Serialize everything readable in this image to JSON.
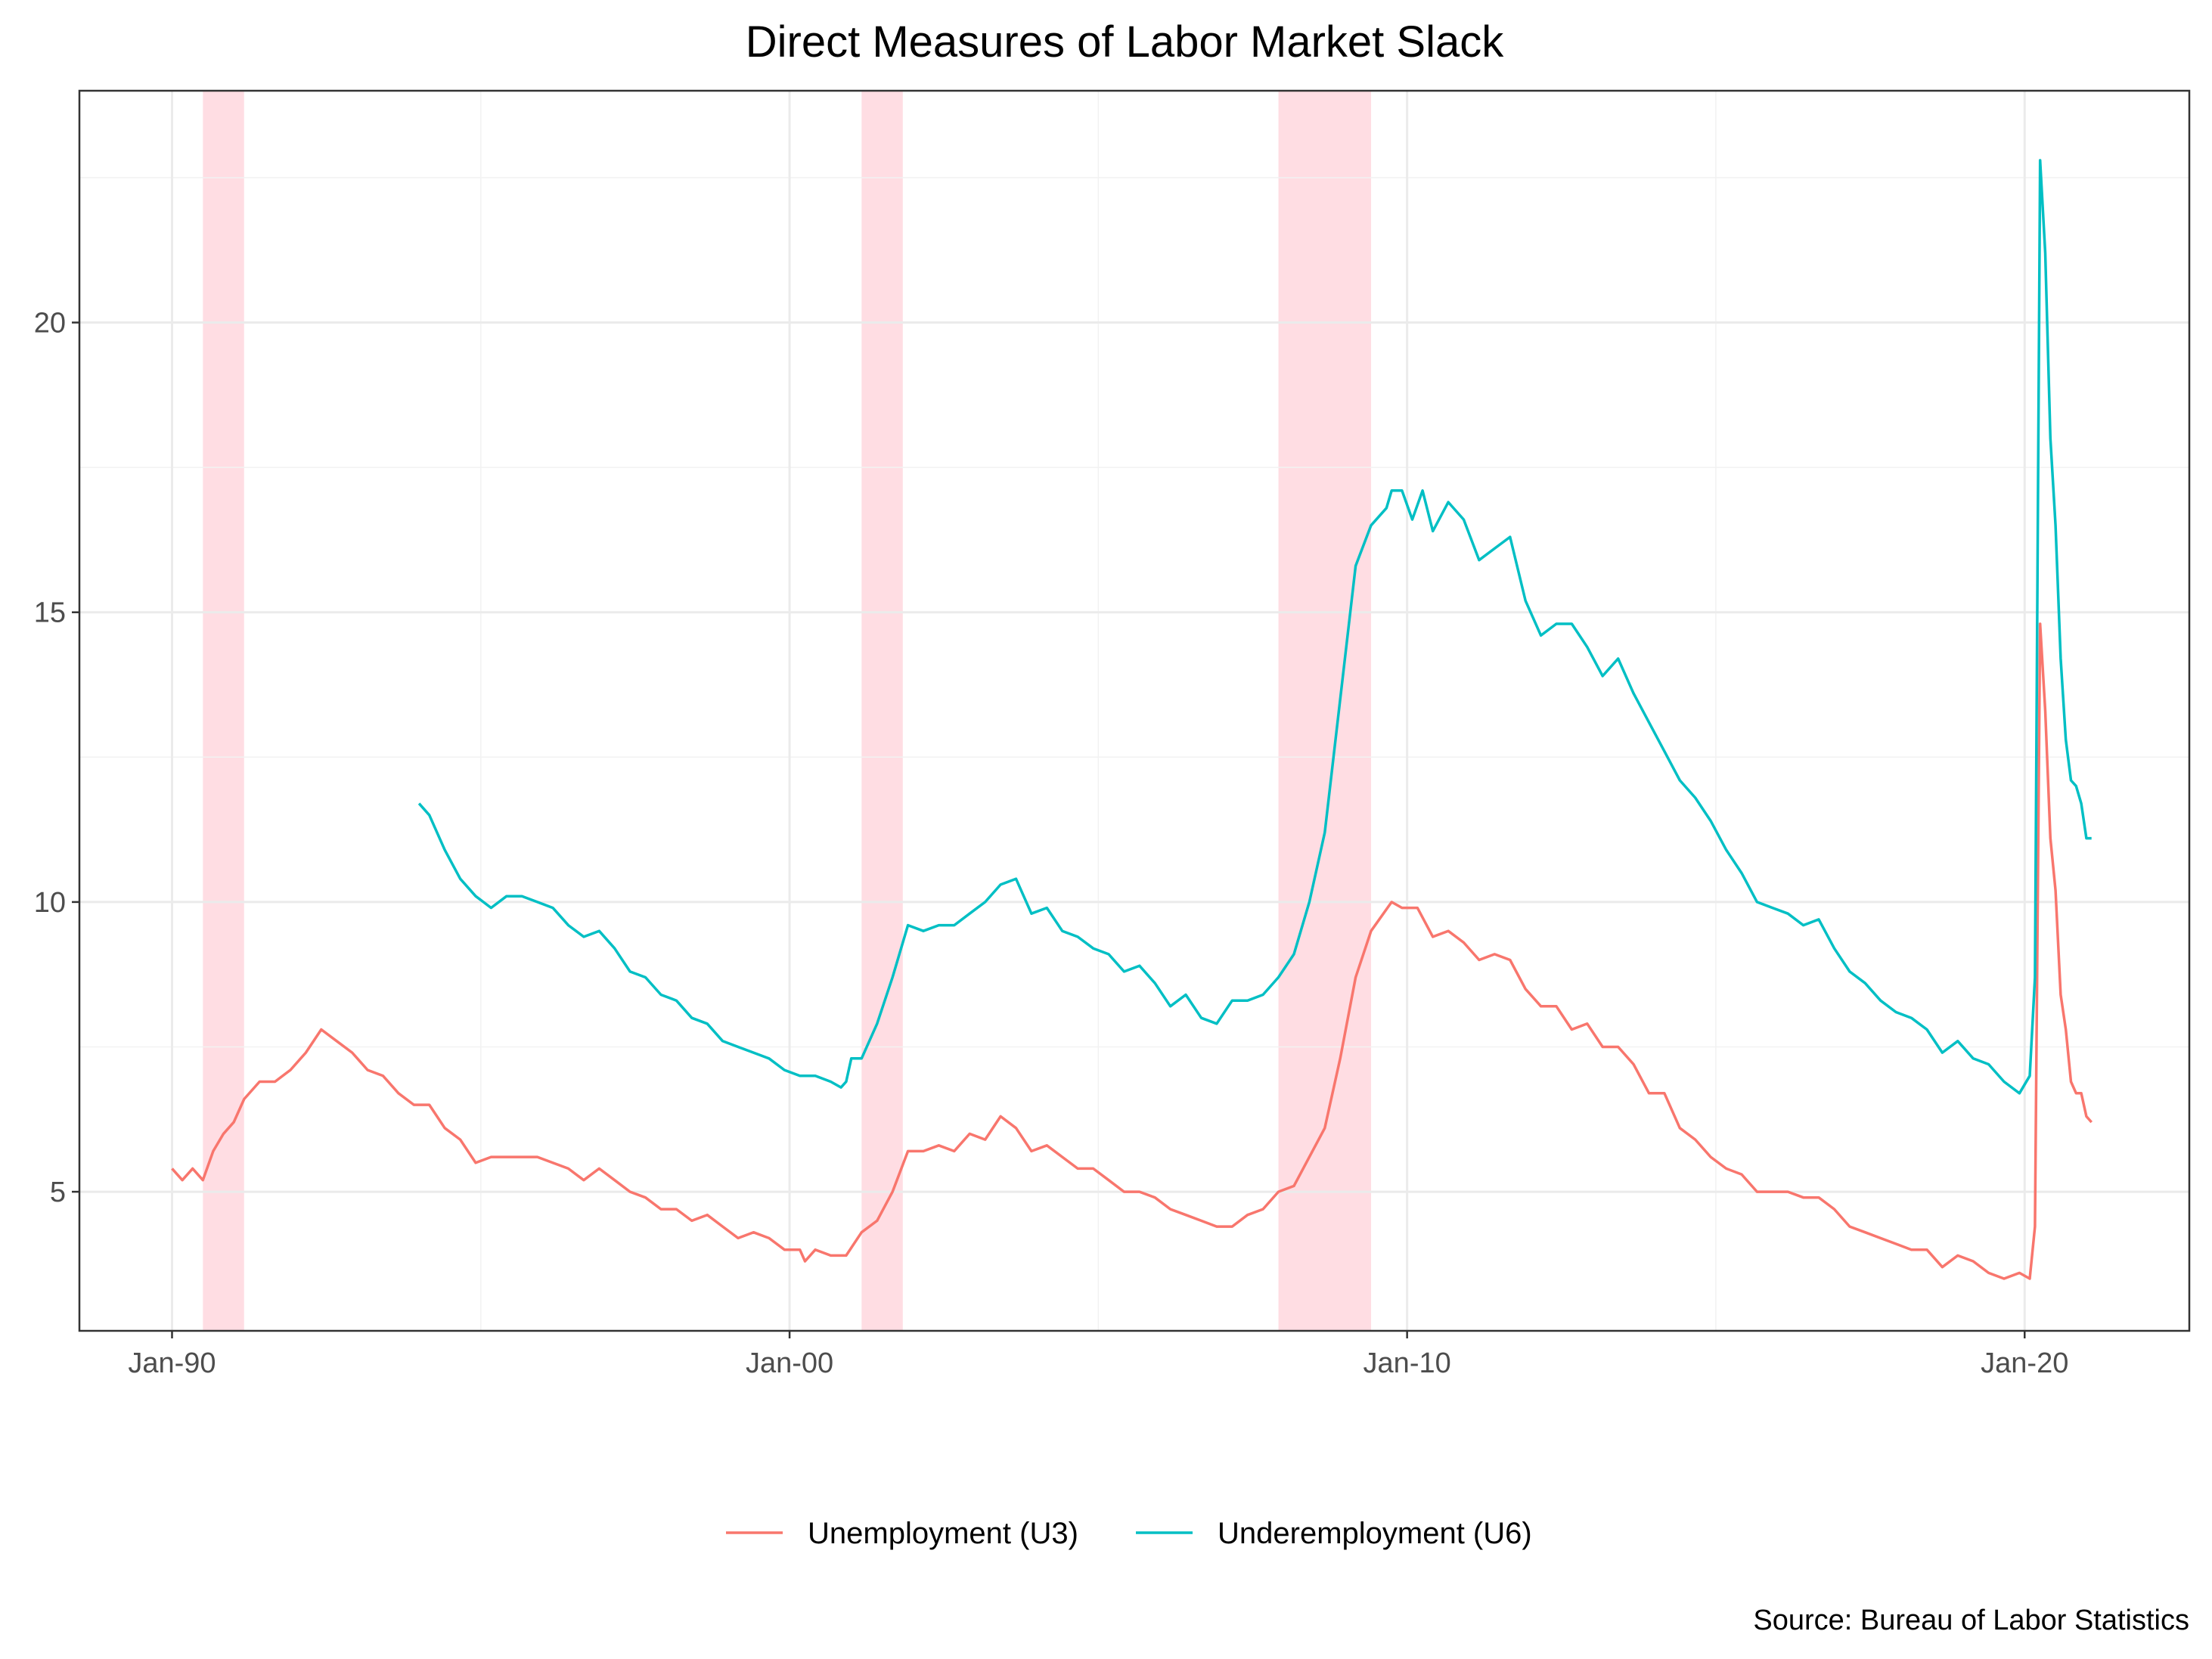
{
  "chart_data": {
    "type": "line",
    "title": "Direct Measures of Labor Market Slack",
    "caption": "Source: Bureau of Labor Statistics",
    "xlabel": "",
    "ylabel": "",
    "x_ticks": [
      "Jan-90",
      "Jan-00",
      "Jan-10",
      "Jan-20"
    ],
    "x_range": [
      "1988-07",
      "2022-09"
    ],
    "y_ticks": [
      5,
      10,
      15,
      20
    ],
    "ylim": [
      2.6,
      24.0
    ],
    "grid": true,
    "legend_position": "bottom",
    "colors": {
      "u3": "#F8766D",
      "u6": "#00BFC4",
      "recession": "#FFDDE3",
      "panel_border": "#333333",
      "grid_major": "#EBEBEB",
      "grid_minor": "#F2F2F2"
    },
    "recessions": [
      {
        "start": "1990-07",
        "end": "1991-03"
      },
      {
        "start": "2001-03",
        "end": "2001-11"
      },
      {
        "start": "2007-12",
        "end": "2009-06"
      }
    ],
    "series": [
      {
        "name": "Unemployment (U3)",
        "key": "u3",
        "points": [
          [
            "1990-01",
            5.4
          ],
          [
            "1990-03",
            5.2
          ],
          [
            "1990-05",
            5.4
          ],
          [
            "1990-07",
            5.2
          ],
          [
            "1990-09",
            5.7
          ],
          [
            "1990-11",
            6.0
          ],
          [
            "1991-01",
            6.2
          ],
          [
            "1991-03",
            6.6
          ],
          [
            "1991-06",
            6.9
          ],
          [
            "1991-09",
            6.9
          ],
          [
            "1991-12",
            7.1
          ],
          [
            "1992-03",
            7.4
          ],
          [
            "1992-06",
            7.8
          ],
          [
            "1992-09",
            7.6
          ],
          [
            "1992-12",
            7.4
          ],
          [
            "1993-03",
            7.1
          ],
          [
            "1993-06",
            7.0
          ],
          [
            "1993-09",
            6.7
          ],
          [
            "1993-12",
            6.5
          ],
          [
            "1994-03",
            6.5
          ],
          [
            "1994-06",
            6.1
          ],
          [
            "1994-09",
            5.9
          ],
          [
            "1994-12",
            5.5
          ],
          [
            "1995-03",
            5.6
          ],
          [
            "1995-06",
            5.6
          ],
          [
            "1995-09",
            5.6
          ],
          [
            "1995-12",
            5.6
          ],
          [
            "1996-03",
            5.5
          ],
          [
            "1996-06",
            5.4
          ],
          [
            "1996-09",
            5.2
          ],
          [
            "1996-12",
            5.4
          ],
          [
            "1997-03",
            5.2
          ],
          [
            "1997-06",
            5.0
          ],
          [
            "1997-09",
            4.9
          ],
          [
            "1997-12",
            4.7
          ],
          [
            "1998-03",
            4.7
          ],
          [
            "1998-06",
            4.5
          ],
          [
            "1998-09",
            4.6
          ],
          [
            "1998-12",
            4.4
          ],
          [
            "1999-03",
            4.2
          ],
          [
            "1999-06",
            4.3
          ],
          [
            "1999-09",
            4.2
          ],
          [
            "1999-12",
            4.0
          ],
          [
            "2000-03",
            4.0
          ],
          [
            "2000-04",
            3.8
          ],
          [
            "2000-06",
            4.0
          ],
          [
            "2000-09",
            3.9
          ],
          [
            "2000-12",
            3.9
          ],
          [
            "2001-03",
            4.3
          ],
          [
            "2001-06",
            4.5
          ],
          [
            "2001-09",
            5.0
          ],
          [
            "2001-12",
            5.7
          ],
          [
            "2002-03",
            5.7
          ],
          [
            "2002-06",
            5.8
          ],
          [
            "2002-09",
            5.7
          ],
          [
            "2002-12",
            6.0
          ],
          [
            "2003-03",
            5.9
          ],
          [
            "2003-06",
            6.3
          ],
          [
            "2003-09",
            6.1
          ],
          [
            "2003-12",
            5.7
          ],
          [
            "2004-03",
            5.8
          ],
          [
            "2004-06",
            5.6
          ],
          [
            "2004-09",
            5.4
          ],
          [
            "2004-12",
            5.4
          ],
          [
            "2005-03",
            5.2
          ],
          [
            "2005-06",
            5.0
          ],
          [
            "2005-09",
            5.0
          ],
          [
            "2005-12",
            4.9
          ],
          [
            "2006-03",
            4.7
          ],
          [
            "2006-06",
            4.6
          ],
          [
            "2006-09",
            4.5
          ],
          [
            "2006-12",
            4.4
          ],
          [
            "2007-03",
            4.4
          ],
          [
            "2007-06",
            4.6
          ],
          [
            "2007-09",
            4.7
          ],
          [
            "2007-12",
            5.0
          ],
          [
            "2008-03",
            5.1
          ],
          [
            "2008-06",
            5.6
          ],
          [
            "2008-09",
            6.1
          ],
          [
            "2008-12",
            7.3
          ],
          [
            "2009-03",
            8.7
          ],
          [
            "2009-06",
            9.5
          ],
          [
            "2009-10",
            10.0
          ],
          [
            "2009-12",
            9.9
          ],
          [
            "2010-03",
            9.9
          ],
          [
            "2010-06",
            9.4
          ],
          [
            "2010-09",
            9.5
          ],
          [
            "2010-12",
            9.3
          ],
          [
            "2011-03",
            9.0
          ],
          [
            "2011-06",
            9.1
          ],
          [
            "2011-09",
            9.0
          ],
          [
            "2011-12",
            8.5
          ],
          [
            "2012-03",
            8.2
          ],
          [
            "2012-06",
            8.2
          ],
          [
            "2012-09",
            7.8
          ],
          [
            "2012-12",
            7.9
          ],
          [
            "2013-03",
            7.5
          ],
          [
            "2013-06",
            7.5
          ],
          [
            "2013-09",
            7.2
          ],
          [
            "2013-12",
            6.7
          ],
          [
            "2014-03",
            6.7
          ],
          [
            "2014-06",
            6.1
          ],
          [
            "2014-09",
            5.9
          ],
          [
            "2014-12",
            5.6
          ],
          [
            "2015-03",
            5.4
          ],
          [
            "2015-06",
            5.3
          ],
          [
            "2015-09",
            5.0
          ],
          [
            "2015-12",
            5.0
          ],
          [
            "2016-03",
            5.0
          ],
          [
            "2016-06",
            4.9
          ],
          [
            "2016-09",
            4.9
          ],
          [
            "2016-12",
            4.7
          ],
          [
            "2017-03",
            4.4
          ],
          [
            "2017-06",
            4.3
          ],
          [
            "2017-09",
            4.2
          ],
          [
            "2017-12",
            4.1
          ],
          [
            "2018-03",
            4.0
          ],
          [
            "2018-06",
            4.0
          ],
          [
            "2018-09",
            3.7
          ],
          [
            "2018-12",
            3.9
          ],
          [
            "2019-03",
            3.8
          ],
          [
            "2019-06",
            3.6
          ],
          [
            "2019-09",
            3.5
          ],
          [
            "2019-12",
            3.6
          ],
          [
            "2020-02",
            3.5
          ],
          [
            "2020-03",
            4.4
          ],
          [
            "2020-04",
            14.8
          ],
          [
            "2020-05",
            13.3
          ],
          [
            "2020-06",
            11.1
          ],
          [
            "2020-07",
            10.2
          ],
          [
            "2020-08",
            8.4
          ],
          [
            "2020-09",
            7.8
          ],
          [
            "2020-10",
            6.9
          ],
          [
            "2020-11",
            6.7
          ],
          [
            "2020-12",
            6.7
          ],
          [
            "2021-01",
            6.3
          ],
          [
            "2021-02",
            6.2
          ]
        ]
      },
      {
        "name": "Underemployment (U6)",
        "key": "u6",
        "points": [
          [
            "1994-01",
            11.7
          ],
          [
            "1994-03",
            11.5
          ],
          [
            "1994-06",
            10.9
          ],
          [
            "1994-09",
            10.4
          ],
          [
            "1994-12",
            10.1
          ],
          [
            "1995-03",
            9.9
          ],
          [
            "1995-06",
            10.1
          ],
          [
            "1995-09",
            10.1
          ],
          [
            "1995-12",
            10.0
          ],
          [
            "1996-03",
            9.9
          ],
          [
            "1996-06",
            9.6
          ],
          [
            "1996-09",
            9.4
          ],
          [
            "1996-12",
            9.5
          ],
          [
            "1997-03",
            9.2
          ],
          [
            "1997-06",
            8.8
          ],
          [
            "1997-09",
            8.7
          ],
          [
            "1997-12",
            8.4
          ],
          [
            "1998-03",
            8.3
          ],
          [
            "1998-06",
            8.0
          ],
          [
            "1998-09",
            7.9
          ],
          [
            "1998-12",
            7.6
          ],
          [
            "1999-03",
            7.5
          ],
          [
            "1999-06",
            7.4
          ],
          [
            "1999-09",
            7.3
          ],
          [
            "1999-12",
            7.1
          ],
          [
            "2000-03",
            7.0
          ],
          [
            "2000-06",
            7.0
          ],
          [
            "2000-09",
            6.9
          ],
          [
            "2000-11",
            6.8
          ],
          [
            "2000-12",
            6.9
          ],
          [
            "2001-01",
            7.3
          ],
          [
            "2001-03",
            7.3
          ],
          [
            "2001-06",
            7.9
          ],
          [
            "2001-09",
            8.7
          ],
          [
            "2001-12",
            9.6
          ],
          [
            "2002-03",
            9.5
          ],
          [
            "2002-06",
            9.6
          ],
          [
            "2002-09",
            9.6
          ],
          [
            "2002-12",
            9.8
          ],
          [
            "2003-03",
            10.0
          ],
          [
            "2003-06",
            10.3
          ],
          [
            "2003-09",
            10.4
          ],
          [
            "2003-12",
            9.8
          ],
          [
            "2004-03",
            9.9
          ],
          [
            "2004-06",
            9.5
          ],
          [
            "2004-09",
            9.4
          ],
          [
            "2004-12",
            9.2
          ],
          [
            "2005-03",
            9.1
          ],
          [
            "2005-06",
            8.8
          ],
          [
            "2005-09",
            8.9
          ],
          [
            "2005-12",
            8.6
          ],
          [
            "2006-03",
            8.2
          ],
          [
            "2006-06",
            8.4
          ],
          [
            "2006-09",
            8.0
          ],
          [
            "2006-12",
            7.9
          ],
          [
            "2007-03",
            8.3
          ],
          [
            "2007-06",
            8.3
          ],
          [
            "2007-09",
            8.4
          ],
          [
            "2007-12",
            8.7
          ],
          [
            "2008-03",
            9.1
          ],
          [
            "2008-06",
            10.0
          ],
          [
            "2008-09",
            11.2
          ],
          [
            "2008-12",
            13.5
          ],
          [
            "2009-03",
            15.8
          ],
          [
            "2009-06",
            16.5
          ],
          [
            "2009-09",
            16.8
          ],
          [
            "2009-10",
            17.1
          ],
          [
            "2009-12",
            17.1
          ],
          [
            "2010-02",
            16.6
          ],
          [
            "2010-04",
            17.1
          ],
          [
            "2010-06",
            16.4
          ],
          [
            "2010-09",
            16.9
          ],
          [
            "2010-12",
            16.6
          ],
          [
            "2011-03",
            15.9
          ],
          [
            "2011-06",
            16.1
          ],
          [
            "2011-09",
            16.3
          ],
          [
            "2011-12",
            15.2
          ],
          [
            "2012-03",
            14.6
          ],
          [
            "2012-06",
            14.8
          ],
          [
            "2012-09",
            14.8
          ],
          [
            "2012-12",
            14.4
          ],
          [
            "2013-03",
            13.9
          ],
          [
            "2013-06",
            14.2
          ],
          [
            "2013-09",
            13.6
          ],
          [
            "2013-12",
            13.1
          ],
          [
            "2014-03",
            12.6
          ],
          [
            "2014-06",
            12.1
          ],
          [
            "2014-09",
            11.8
          ],
          [
            "2014-12",
            11.4
          ],
          [
            "2015-03",
            10.9
          ],
          [
            "2015-06",
            10.5
          ],
          [
            "2015-09",
            10.0
          ],
          [
            "2015-12",
            9.9
          ],
          [
            "2016-03",
            9.8
          ],
          [
            "2016-06",
            9.6
          ],
          [
            "2016-09",
            9.7
          ],
          [
            "2016-12",
            9.2
          ],
          [
            "2017-03",
            8.8
          ],
          [
            "2017-06",
            8.6
          ],
          [
            "2017-09",
            8.3
          ],
          [
            "2017-12",
            8.1
          ],
          [
            "2018-03",
            8.0
          ],
          [
            "2018-06",
            7.8
          ],
          [
            "2018-09",
            7.4
          ],
          [
            "2018-12",
            7.6
          ],
          [
            "2019-03",
            7.3
          ],
          [
            "2019-06",
            7.2
          ],
          [
            "2019-09",
            6.9
          ],
          [
            "2019-12",
            6.7
          ],
          [
            "2020-02",
            7.0
          ],
          [
            "2020-03",
            8.7
          ],
          [
            "2020-04",
            22.8
          ],
          [
            "2020-05",
            21.2
          ],
          [
            "2020-06",
            18.0
          ],
          [
            "2020-07",
            16.5
          ],
          [
            "2020-08",
            14.2
          ],
          [
            "2020-09",
            12.8
          ],
          [
            "2020-10",
            12.1
          ],
          [
            "2020-11",
            12.0
          ],
          [
            "2020-12",
            11.7
          ],
          [
            "2021-01",
            11.1
          ],
          [
            "2021-02",
            11.1
          ]
        ]
      }
    ]
  }
}
